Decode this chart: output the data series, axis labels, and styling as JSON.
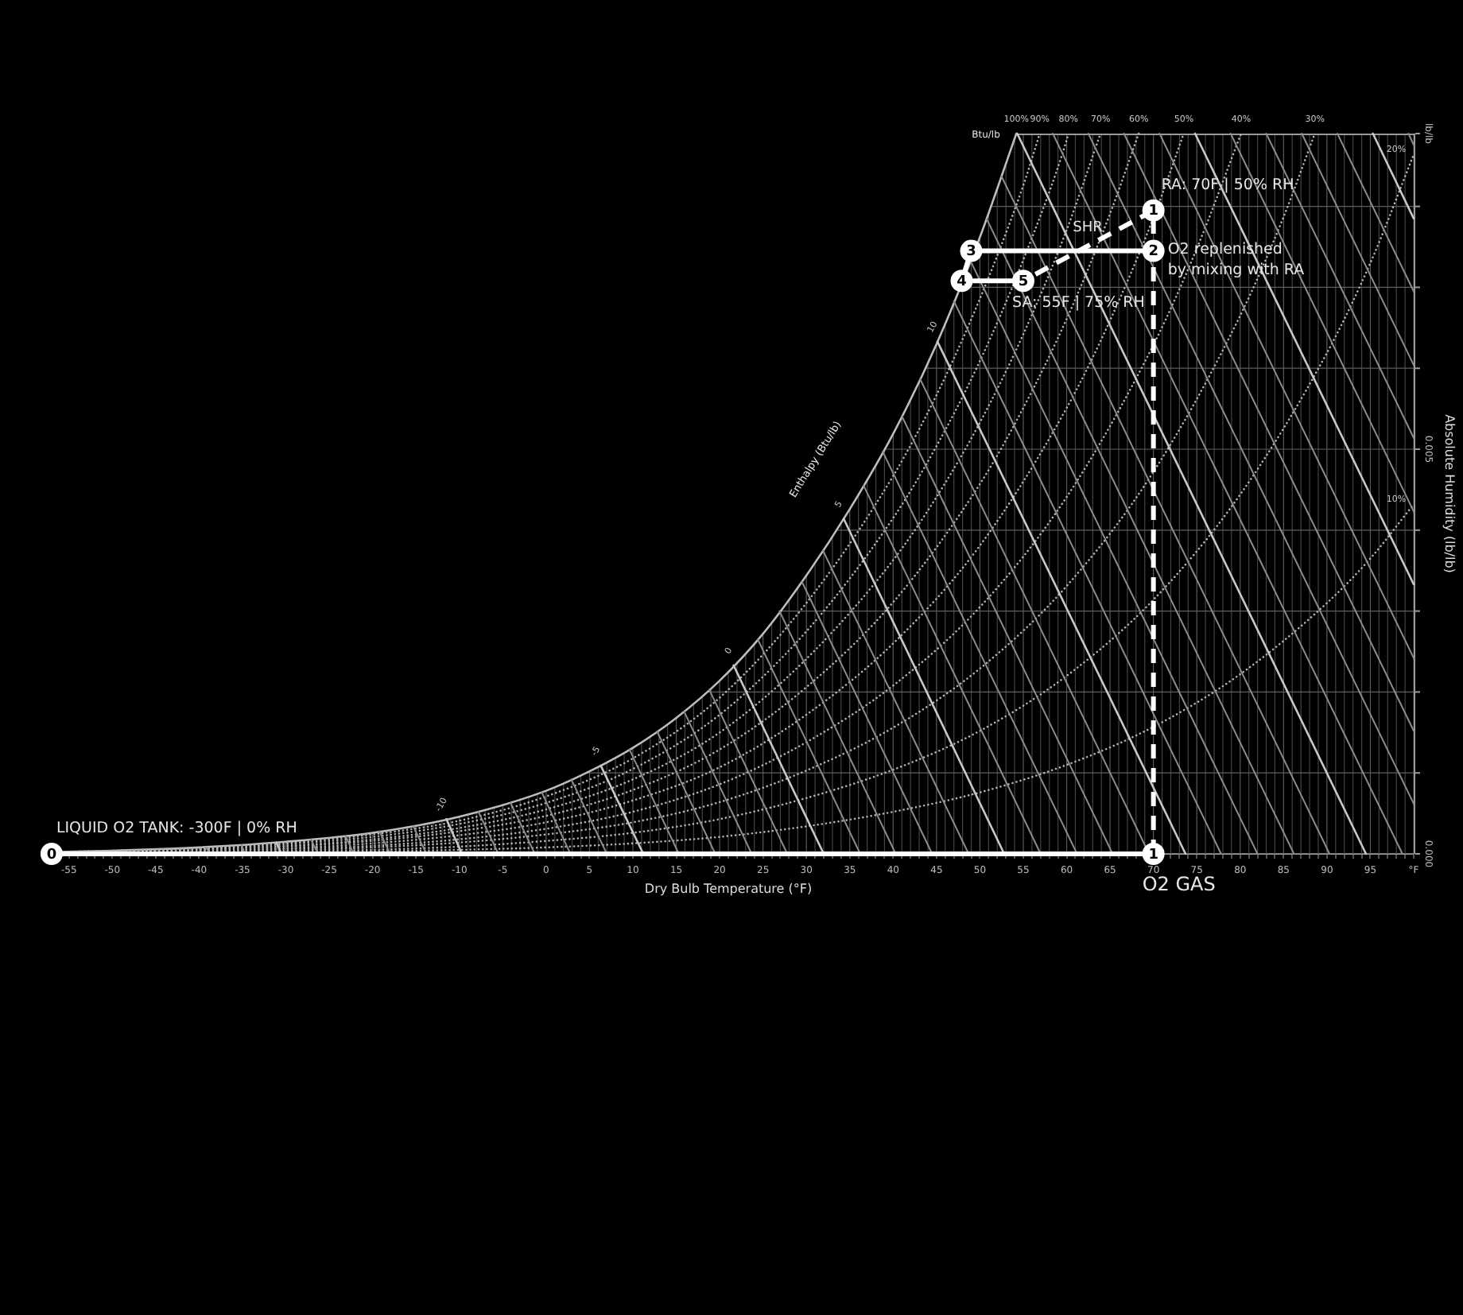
{
  "chart_data": {
    "type": "line",
    "xlabel": "Dry Bulb Temperature (°F)",
    "ylabel": "Absolute Humidity (lb/lb)",
    "xlim": [
      -58,
      100
    ],
    "ylim": [
      0,
      0.0089
    ],
    "grid": true,
    "legend": false,
    "xticks": [
      {
        "value": -58,
        "label": null
      },
      {
        "value": -57,
        "label": null
      },
      {
        "value": -56,
        "label": null
      },
      -55,
      {
        "value": -54,
        "label": null
      },
      {
        "value": -53,
        "label": null
      },
      {
        "value": -52,
        "label": null
      },
      {
        "value": -51,
        "label": null
      },
      -50,
      {
        "value": -49,
        "label": null
      },
      {
        "value": -48,
        "label": null
      },
      {
        "value": -47,
        "label": null
      },
      {
        "value": -46,
        "label": null
      },
      -45,
      {
        "value": -44,
        "label": null
      },
      {
        "value": -43,
        "label": null
      },
      {
        "value": -42,
        "label": null
      },
      {
        "value": -41,
        "label": null
      },
      -40,
      {
        "value": -39,
        "label": null
      },
      {
        "value": -38,
        "label": null
      },
      {
        "value": -37,
        "label": null
      },
      {
        "value": -36,
        "label": null
      },
      -35,
      {
        "value": -34,
        "label": null
      },
      {
        "value": -33,
        "label": null
      },
      {
        "value": -32,
        "label": null
      },
      {
        "value": -31,
        "label": null
      },
      -30,
      {
        "value": -29,
        "label": null
      },
      {
        "value": -28,
        "label": null
      },
      {
        "value": -27,
        "label": null
      },
      {
        "value": -26,
        "label": null
      },
      -25,
      {
        "value": -24,
        "label": null
      },
      {
        "value": -23,
        "label": null
      },
      {
        "value": -22,
        "label": null
      },
      {
        "value": -21,
        "label": null
      },
      -20,
      {
        "value": -19,
        "label": null
      },
      {
        "value": -18,
        "label": null
      },
      {
        "value": -17,
        "label": null
      },
      {
        "value": -16,
        "label": null
      },
      -15,
      {
        "value": -14,
        "label": null
      },
      {
        "value": -13,
        "label": null
      },
      {
        "value": -12,
        "label": null
      },
      {
        "value": -11,
        "label": null
      },
      -10,
      {
        "value": -9,
        "label": null
      },
      {
        "value": -8,
        "label": null
      },
      {
        "value": -7,
        "label": null
      },
      {
        "value": -6,
        "label": null
      },
      -5,
      {
        "value": -4,
        "label": null
      },
      {
        "value": -3,
        "label": null
      },
      {
        "value": -2,
        "label": null
      },
      {
        "value": -1,
        "label": null
      },
      0,
      {
        "value": 1,
        "label": null
      },
      {
        "value": 2,
        "label": null
      },
      {
        "value": 3,
        "label": null
      },
      {
        "value": 4,
        "label": null
      },
      5,
      {
        "value": 6,
        "label": null
      },
      {
        "value": 7,
        "label": null
      },
      {
        "value": 8,
        "label": null
      },
      {
        "value": 9,
        "label": null
      },
      10,
      {
        "value": 11,
        "label": null
      },
      {
        "value": 12,
        "label": null
      },
      {
        "value": 13,
        "label": null
      },
      {
        "value": 14,
        "label": null
      },
      15,
      {
        "value": 16,
        "label": null
      },
      {
        "value": 17,
        "label": null
      },
      {
        "value": 18,
        "label": null
      },
      {
        "value": 19,
        "label": null
      },
      20,
      {
        "value": 21,
        "label": null
      },
      {
        "value": 22,
        "label": null
      },
      {
        "value": 23,
        "label": null
      },
      {
        "value": 24,
        "label": null
      },
      25,
      {
        "value": 26,
        "label": null
      },
      {
        "value": 27,
        "label": null
      },
      {
        "value": 28,
        "label": null
      },
      {
        "value": 29,
        "label": null
      },
      30,
      {
        "value": 31,
        "label": null
      },
      {
        "value": 32,
        "label": null
      },
      {
        "value": 33,
        "label": null
      },
      {
        "value": 34,
        "label": null
      },
      35,
      {
        "value": 36,
        "label": null
      },
      {
        "value": 37,
        "label": null
      },
      {
        "value": 38,
        "label": null
      },
      {
        "value": 39,
        "label": null
      },
      40,
      {
        "value": 41,
        "label": null
      },
      {
        "value": 42,
        "label": null
      },
      {
        "value": 43,
        "label": null
      },
      {
        "value": 44,
        "label": null
      },
      45,
      {
        "value": 46,
        "label": null
      },
      {
        "value": 47,
        "label": null
      },
      {
        "value": 48,
        "label": null
      },
      {
        "value": 49,
        "label": null
      },
      50,
      {
        "value": 51,
        "label": null
      },
      {
        "value": 52,
        "label": null
      },
      {
        "value": 53,
        "label": null
      },
      {
        "value": 54,
        "label": null
      },
      55,
      {
        "value": 56,
        "label": null
      },
      {
        "value": 57,
        "label": null
      },
      {
        "value": 58,
        "label": null
      },
      {
        "value": 59,
        "label": null
      },
      60,
      {
        "value": 61,
        "label": null
      },
      {
        "value": 62,
        "label": null
      },
      {
        "value": 63,
        "label": null
      },
      {
        "value": 64,
        "label": null
      },
      65,
      {
        "value": 66,
        "label": null
      },
      {
        "value": 67,
        "label": null
      },
      {
        "value": 68,
        "label": null
      },
      {
        "value": 69,
        "label": null
      },
      70,
      {
        "value": 71,
        "label": null
      },
      {
        "value": 72,
        "label": null
      },
      {
        "value": 73,
        "label": null
      },
      {
        "value": 74,
        "label": null
      },
      75,
      {
        "value": 76,
        "label": null
      },
      {
        "value": 77,
        "label": null
      },
      {
        "value": 78,
        "label": null
      },
      {
        "value": 79,
        "label": null
      },
      80,
      {
        "value": 81,
        "label": null
      },
      {
        "value": 82,
        "label": null
      },
      {
        "value": 83,
        "label": null
      },
      {
        "value": 84,
        "label": null
      },
      85,
      {
        "value": 86,
        "label": null
      },
      {
        "value": 87,
        "label": null
      },
      {
        "value": 88,
        "label": null
      },
      {
        "value": 89,
        "label": null
      },
      90,
      {
        "value": 91,
        "label": null
      },
      {
        "value": 92,
        "label": null
      },
      {
        "value": 93,
        "label": null
      },
      {
        "value": 94,
        "label": null
      },
      95,
      {
        "value": 96,
        "label": null
      },
      {
        "value": 97,
        "label": null
      },
      {
        "value": 98,
        "label": null
      },
      {
        "value": 99,
        "label": null
      },
      {
        "value": 100,
        "label": "°F"
      }
    ],
    "yticks": [
      {
        "value": 0,
        "label": "0.000"
      },
      {
        "value": 0.001,
        "label": null
      },
      {
        "value": 0.002,
        "label": null
      },
      {
        "value": 0.003,
        "label": null
      },
      {
        "value": 0.004,
        "label": null
      },
      {
        "value": 0.005,
        "label": "0.005"
      },
      {
        "value": 0.006,
        "label": null
      },
      {
        "value": 0.007,
        "label": null
      },
      {
        "value": 0.008,
        "label": null
      },
      {
        "value": 0.0089,
        "label": "lb/lb"
      }
    ],
    "annotations": [
      {
        "text": "LIQUID O2 TANK: -300F | 0% RH",
        "x": -57,
        "y": 0
      },
      {
        "text": "O2 GAS",
        "x": 70,
        "y": 0
      },
      {
        "text": "RA: 70F | 50% RH",
        "x": 70,
        "y": 0.00795
      },
      {
        "text": "O2 replenished\nby mixing with RA",
        "x": 70,
        "y": 0.00745
      },
      {
        "text": "SA: 55F | 75% RH",
        "x": 55,
        "y": 0.00708
      },
      "SHR",
      {
        "text": "0",
        "x": -57,
        "y": 0
      },
      {
        "text": "1",
        "x": 70,
        "y": 0
      },
      {
        "text": "1",
        "x": 70,
        "y": 0.00795
      },
      {
        "text": "2",
        "x": 70,
        "y": 0.00745
      },
      {
        "text": "3",
        "x": 49,
        "y": 0.00745
      },
      {
        "text": "4",
        "x": 47.9,
        "y": 0.00708
      },
      {
        "text": "5",
        "x": 55,
        "y": 0.00708
      },
      "Btu/lb",
      "Enthalpy (Btu/lb)"
    ],
    "series": [
      {
        "name": "100%",
        "color": "#bdbdbd",
        "line_style": "solid",
        "x": [
          -58,
          -50,
          -40,
          -30,
          -20,
          -10,
          0,
          5,
          10,
          15,
          20,
          25,
          30,
          35,
          40,
          45,
          50,
          52,
          54.2
        ],
        "values": [
          2e-05,
          4e-05,
          8e-05,
          0.00015,
          0.00026,
          0.00046,
          0.00078,
          0.00102,
          0.00131,
          0.00168,
          0.00214,
          0.00272,
          0.00344,
          0.00426,
          0.00519,
          0.0063,
          0.00762,
          0.00822,
          0.0089
        ]
      },
      {
        "name": "90%",
        "color": "#b3b3b3",
        "line_style": "dotted",
        "x": [
          -58,
          -50,
          -40,
          -30,
          -20,
          -10,
          0,
          10,
          20,
          30,
          40,
          45,
          50,
          55,
          56.9
        ],
        "values": [
          2e-05,
          4e-05,
          7e-05,
          0.00013,
          0.00024,
          0.00041,
          0.00071,
          0.00118,
          0.00193,
          0.0031,
          0.00467,
          0.00567,
          0.00686,
          0.00826,
          0.0089
        ]
      },
      {
        "name": "80%",
        "color": "#b3b3b3",
        "line_style": "dotted",
        "x": [
          -58,
          -50,
          -40,
          -30,
          -20,
          -10,
          0,
          10,
          20,
          30,
          40,
          45,
          50,
          55,
          60,
          60.2
        ],
        "values": [
          2e-05,
          3e-05,
          6e-05,
          0.00012,
          0.00021,
          0.00037,
          0.00063,
          0.00105,
          0.00172,
          0.00275,
          0.00415,
          0.00504,
          0.00609,
          0.00734,
          0.00882,
          0.0089
        ]
      },
      {
        "name": "70%",
        "color": "#b3b3b3",
        "line_style": "dotted",
        "x": [
          -58,
          -50,
          -40,
          -30,
          -20,
          -10,
          0,
          10,
          20,
          30,
          40,
          45,
          50,
          55,
          60,
          63.9
        ],
        "values": [
          2e-05,
          3e-05,
          6e-05,
          0.0001,
          0.00018,
          0.00032,
          0.00055,
          0.00092,
          0.0015,
          0.00241,
          0.00363,
          0.00441,
          0.00533,
          0.00642,
          0.00771,
          0.0089
        ]
      },
      {
        "name": "60%",
        "color": "#b3b3b3",
        "line_style": "dotted",
        "x": [
          -58,
          -50,
          -40,
          -30,
          -20,
          -10,
          0,
          10,
          20,
          30,
          40,
          50,
          55,
          60,
          65,
          68.3
        ],
        "values": [
          1e-05,
          2e-05,
          5e-05,
          9e-05,
          0.00016,
          0.00028,
          0.00047,
          0.00079,
          0.00129,
          0.00206,
          0.00311,
          0.00457,
          0.00551,
          0.00661,
          0.00791,
          0.0089
        ]
      },
      {
        "name": "50%",
        "color": "#b3b3b3",
        "line_style": "dotted",
        "x": [
          -58,
          -50,
          -40,
          -30,
          -20,
          -10,
          0,
          10,
          20,
          30,
          40,
          50,
          60,
          65,
          70,
          73.5
        ],
        "values": [
          1e-05,
          2e-05,
          4e-05,
          7e-05,
          0.00013,
          0.00023,
          0.00039,
          0.00066,
          0.00107,
          0.00172,
          0.0026,
          0.00381,
          0.00551,
          0.00659,
          0.00786,
          0.0089
        ]
      },
      {
        "name": "40%",
        "color": "#b3b3b3",
        "line_style": "dotted",
        "x": [
          -58,
          -50,
          -40,
          -30,
          -20,
          -10,
          0,
          10,
          20,
          30,
          40,
          50,
          60,
          70,
          75,
          80.1
        ],
        "values": [
          1e-05,
          2e-05,
          3e-05,
          6e-05,
          0.0001,
          0.00018,
          0.00031,
          0.00052,
          0.00086,
          0.00138,
          0.00208,
          0.00305,
          0.00441,
          0.00629,
          0.00748,
          0.0089
        ]
      },
      {
        "name": "30%",
        "color": "#b3b3b3",
        "line_style": "dotted",
        "x": [
          -58,
          -50,
          -40,
          -30,
          -20,
          -10,
          0,
          10,
          20,
          30,
          40,
          50,
          60,
          70,
          80,
          85,
          88.6
        ],
        "values": [
          1e-05,
          1e-05,
          2e-05,
          4e-05,
          8e-05,
          0.00014,
          0.00024,
          0.00039,
          0.00064,
          0.00103,
          0.00156,
          0.00229,
          0.00331,
          0.00472,
          0.00665,
          0.00787,
          0.0089
        ]
      },
      {
        "name": "20%",
        "color": "#b3b3b3",
        "line_style": "dotted",
        "x": [
          -58,
          -50,
          -40,
          -30,
          -20,
          -10,
          0,
          10,
          20,
          30,
          40,
          50,
          60,
          70,
          80,
          90,
          95,
          100
        ],
        "values": [
          0,
          1e-05,
          2e-05,
          3e-05,
          5e-05,
          9e-05,
          0.00016,
          0.00026,
          0.00043,
          0.00069,
          0.00104,
          0.00152,
          0.0022,
          0.00314,
          0.00444,
          0.00619,
          0.0073,
          0.00864
        ]
      },
      {
        "name": "10%",
        "color": "#b3b3b3",
        "line_style": "dotted",
        "x": [
          -58,
          -50,
          -40,
          -30,
          -20,
          -10,
          0,
          10,
          20,
          30,
          40,
          50,
          60,
          70,
          80,
          90,
          95,
          100
        ],
        "values": [
          0,
          0,
          1e-05,
          1e-05,
          3e-05,
          5e-05,
          8e-05,
          0.00013,
          0.00021,
          0.00034,
          0.00052,
          0.00076,
          0.0011,
          0.00157,
          0.00222,
          0.0031,
          0.00365,
          0.00432
        ]
      },
      {
        "color": "#8c8c8c",
        "line_style": "solid",
        "x": [
          -39.2,
          -38.8
        ],
        "values": [
          8e-05,
          0
        ]
      },
      {
        "color": "#8c8c8c",
        "line_style": "solid",
        "x": [
          -35.1,
          -34.7
        ],
        "values": [
          0.00011,
          0
        ]
      },
      {
        "color": "#c8c8c8",
        "line_style": "solid",
        "x": [
          -31.1,
          -30.5
        ],
        "values": [
          0.00014,
          0
        ]
      },
      {
        "color": "#8c8c8c",
        "line_style": "solid",
        "x": [
          -27.1,
          -26.3
        ],
        "values": [
          0.00018,
          0
        ]
      },
      {
        "color": "#8c8c8c",
        "line_style": "solid",
        "x": [
          -23.1,
          -22.2
        ],
        "values": [
          0.00022,
          0
        ]
      },
      {
        "color": "#8c8c8c",
        "line_style": "solid",
        "x": [
          -19.2,
          -18
        ],
        "values": [
          0.00028,
          0
        ]
      },
      {
        "color": "#8c8c8c",
        "line_style": "solid",
        "x": [
          -15.3,
          -13.8
        ],
        "values": [
          0.00034,
          0
        ]
      },
      {
        "name": "-10",
        "color": "#c8c8c8",
        "line_style": "solid",
        "x": [
          -11.5,
          -9.7
        ],
        "values": [
          0.00043,
          0
        ]
      },
      {
        "color": "#8c8c8c",
        "line_style": "solid",
        "x": [
          -7.8,
          -5.5
        ],
        "values": [
          0.00052,
          0
        ]
      },
      {
        "color": "#8c8c8c",
        "line_style": "solid",
        "x": [
          -4.1,
          -1.3
        ],
        "values": [
          0.00063,
          0
        ]
      },
      {
        "color": "#8c8c8c",
        "line_style": "solid",
        "x": [
          -0.5,
          2.8
        ],
        "values": [
          0.00076,
          0
        ]
      },
      {
        "color": "#8c8c8c",
        "line_style": "solid",
        "x": [
          2.9,
          7
        ],
        "values": [
          0.00092,
          0
        ]
      },
      {
        "name": "-5",
        "color": "#c8c8c8",
        "line_style": "solid",
        "x": [
          6.3,
          11.2
        ],
        "values": [
          0.00109,
          0
        ]
      },
      {
        "color": "#8c8c8c",
        "line_style": "solid",
        "x": [
          9.6,
          15.3
        ],
        "values": [
          0.00129,
          0
        ]
      },
      {
        "color": "#8c8c8c",
        "line_style": "solid",
        "x": [
          12.8,
          19.5
        ],
        "values": [
          0.00151,
          0
        ]
      },
      {
        "color": "#8c8c8c",
        "line_style": "solid",
        "x": [
          15.9,
          23.7
        ],
        "values": [
          0.00176,
          0
        ]
      },
      {
        "color": "#8c8c8c",
        "line_style": "solid",
        "x": [
          18.8,
          27.8
        ],
        "values": [
          0.00203,
          0
        ]
      },
      {
        "name": "0",
        "color": "#c8c8c8",
        "line_style": "solid",
        "x": [
          21.6,
          32
        ],
        "values": [
          0.00233,
          0
        ]
      },
      {
        "color": "#8c8c8c",
        "line_style": "solid",
        "x": [
          24.4,
          36.2
        ],
        "values": [
          0.00265,
          0
        ]
      },
      {
        "color": "#8c8c8c",
        "line_style": "solid",
        "x": [
          26.9,
          40.3
        ],
        "values": [
          0.003,
          0
        ]
      },
      {
        "color": "#8c8c8c",
        "line_style": "solid",
        "x": [
          29.5,
          44.5
        ],
        "values": [
          0.00336,
          0
        ]
      },
      {
        "color": "#8c8c8c",
        "line_style": "solid",
        "x": [
          31.9,
          48.7
        ],
        "values": [
          0.00375,
          0
        ]
      },
      {
        "name": "5",
        "color": "#c8c8c8",
        "line_style": "solid",
        "x": [
          34.3,
          52.8
        ],
        "values": [
          0.00414,
          0
        ]
      },
      {
        "color": "#8c8c8c",
        "line_style": "solid",
        "x": [
          36.6,
          57
        ],
        "values": [
          0.00455,
          0
        ]
      },
      {
        "color": "#8c8c8c",
        "line_style": "solid",
        "x": [
          38.8,
          61.2
        ],
        "values": [
          0.00497,
          0
        ]
      },
      {
        "color": "#8c8c8c",
        "line_style": "solid",
        "x": [
          41,
          65.3
        ],
        "values": [
          0.00541,
          0
        ]
      },
      {
        "color": "#8c8c8c",
        "line_style": "solid",
        "x": [
          43.1,
          69.5
        ],
        "values": [
          0.00587,
          0
        ]
      },
      {
        "name": "10",
        "color": "#c8c8c8",
        "line_style": "solid",
        "x": [
          45.1,
          73.7
        ],
        "values": [
          0.00633,
          0
        ]
      },
      {
        "color": "#8c8c8c",
        "line_style": "solid",
        "x": [
          47,
          77.8
        ],
        "values": [
          0.00683,
          0
        ]
      },
      {
        "color": "#8c8c8c",
        "line_style": "solid",
        "x": [
          48.9,
          82
        ],
        "values": [
          0.00733,
          0
        ]
      },
      {
        "color": "#8c8c8c",
        "line_style": "solid",
        "x": [
          50.8,
          86.2
        ],
        "values": [
          0.00784,
          0
        ]
      },
      {
        "color": "#8c8c8c",
        "line_style": "solid",
        "x": [
          52.5,
          90.3
        ],
        "values": [
          0.00837,
          0
        ]
      },
      {
        "color": "#c8c8c8",
        "line_style": "solid",
        "x": [
          54.3,
          94.5
        ],
        "values": [
          0.0089,
          0
        ]
      },
      {
        "color": "#8c8c8c",
        "line_style": "solid",
        "x": [
          58.4,
          98.7
        ],
        "values": [
          0.0089,
          0
        ]
      },
      {
        "color": "#8c8c8c",
        "line_style": "solid",
        "x": [
          62.5,
          100
        ],
        "values": [
          0.0089,
          0.00062
        ]
      },
      {
        "color": "#8c8c8c",
        "line_style": "solid",
        "x": [
          66.6,
          100
        ],
        "values": [
          0.0089,
          0.00152
        ]
      },
      {
        "color": "#8c8c8c",
        "line_style": "solid",
        "x": [
          70.7,
          100
        ],
        "values": [
          0.0089,
          0.00242
        ]
      },
      {
        "color": "#c8c8c8",
        "line_style": "solid",
        "x": [
          74.8,
          100
        ],
        "values": [
          0.0089,
          0.00333
        ]
      },
      {
        "color": "#8c8c8c",
        "line_style": "solid",
        "x": [
          78.9,
          100
        ],
        "values": [
          0.0089,
          0.00423
        ]
      },
      {
        "color": "#8c8c8c",
        "line_style": "solid",
        "x": [
          83,
          100
        ],
        "values": [
          0.0089,
          0.00514
        ]
      },
      {
        "color": "#8c8c8c",
        "line_style": "solid",
        "x": [
          87.1,
          100
        ],
        "values": [
          0.0089,
          0.00604
        ]
      },
      {
        "color": "#8c8c8c",
        "line_style": "solid",
        "x": [
          91.2,
          100
        ],
        "values": [
          0.0089,
          0.00695
        ]
      },
      {
        "color": "#c8c8c8",
        "line_style": "solid",
        "x": [
          95.3,
          100
        ],
        "values": [
          0.0089,
          0.00785
        ]
      },
      {
        "color": "#8c8c8c",
        "line_style": "solid",
        "x": [
          99.4,
          100
        ],
        "values": [
          0.0089,
          0.00876
        ]
      },
      {
        "color": "#ffffff",
        "line_style": "solid",
        "x": [
          -57,
          70
        ],
        "values": [
          0,
          0
        ]
      },
      {
        "color": "#ffffff",
        "line_style": "dashed",
        "x": [
          70,
          70,
          70,
          55
        ],
        "values": [
          0,
          0.00745,
          0.00795,
          0.00708
        ]
      },
      {
        "color": "#ffffff",
        "line_style": "solid",
        "x": [
          55,
          47.9,
          49,
          70
        ],
        "values": [
          0.00708,
          0.00708,
          0.00745,
          0.00745
        ]
      },
      {
        "type": "scatter",
        "marker": "circle",
        "color": "#ffffff",
        "x": [
          -57,
          70,
          70,
          70,
          49,
          47.9,
          55
        ],
        "values": [
          0,
          0,
          0.00795,
          0.00745,
          0.00745,
          0.00708,
          0.00708
        ]
      }
    ]
  }
}
